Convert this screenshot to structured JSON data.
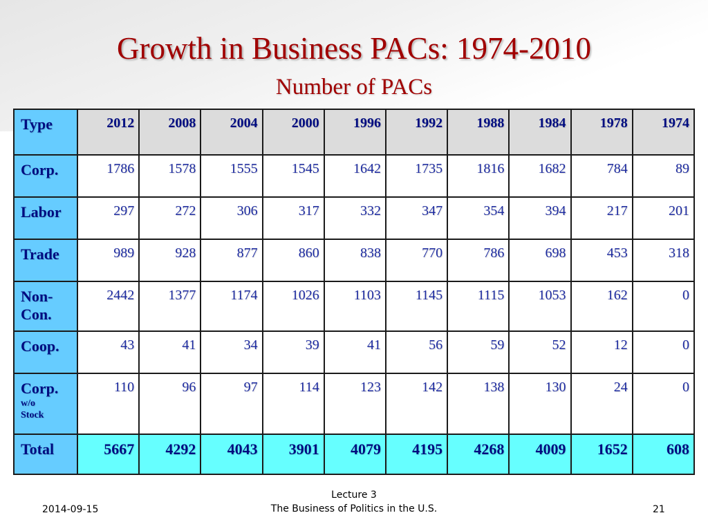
{
  "slide": {
    "title": "Growth in Business PACs: 1974-2010",
    "subtitle": "Number of PACs"
  },
  "table": {
    "header": [
      "Type",
      "2012",
      "2008",
      "2004",
      "2000",
      "1996",
      "1992",
      "1988",
      "1984",
      "1978",
      "1974"
    ],
    "rows": [
      {
        "type": "Corp.",
        "values": [
          "1786",
          "1578",
          "1555",
          "1545",
          "1642",
          "1735",
          "1816",
          "1682",
          "784",
          "89"
        ]
      },
      {
        "type": "Labor",
        "values": [
          "297",
          "272",
          "306",
          "317",
          "332",
          "347",
          "354",
          "394",
          "217",
          "201"
        ]
      },
      {
        "type": "Trade",
        "values": [
          "989",
          "928",
          "877",
          "860",
          "838",
          "770",
          "786",
          "698",
          "453",
          "318"
        ]
      },
      {
        "type": "Non-Con.",
        "type_line1": "Non-",
        "type_line2": "Con.",
        "values": [
          "2442",
          "1377",
          "1174",
          "1026",
          "1103",
          "1145",
          "1115",
          "1053",
          "162",
          "0"
        ]
      },
      {
        "type": "Coop.",
        "values": [
          "43",
          "41",
          "34",
          "39",
          "41",
          "56",
          "59",
          "52",
          "12",
          "0"
        ]
      },
      {
        "type": "Corp. w/o Stock",
        "type_line1": "Corp.",
        "type_line2": "w/o",
        "type_line3": "Stock",
        "values": [
          "110",
          "96",
          "97",
          "114",
          "123",
          "142",
          "138",
          "130",
          "24",
          "0"
        ]
      }
    ],
    "total": {
      "type": "Total",
      "values": [
        "5667",
        "4292",
        "4043",
        "3901",
        "4079",
        "4195",
        "4268",
        "4009",
        "1652",
        "608"
      ]
    }
  },
  "footer": {
    "date": "2014-09-15",
    "lecture": "Lecture 3",
    "course": "The Business of Politics in the U.S.",
    "page": "21"
  },
  "colors": {
    "title": "#a00000",
    "type_column": "#66ccff",
    "header_row": "#dcdcdc",
    "total_row": "#66ffff",
    "cell_text": "#1c2aa0"
  }
}
